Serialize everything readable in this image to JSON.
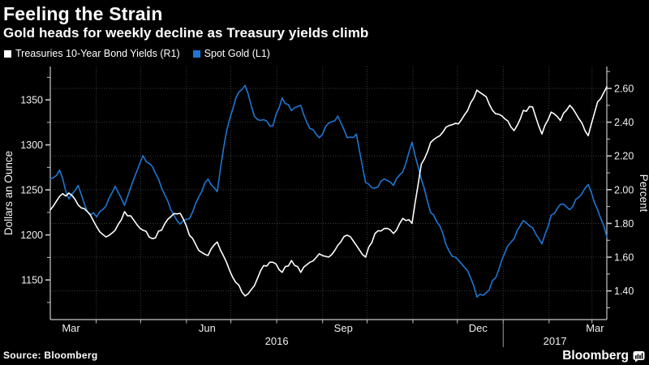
{
  "title": "Feeling the Strain",
  "subtitle": "Gold heads for weekly decline as Treasury yields climb",
  "legend": {
    "items": [
      {
        "label": "Treasuries 10-Year Bond Yields (R1)",
        "color": "#ffffff"
      },
      {
        "label": "Spot Gold (L1)",
        "color": "#1d76d2"
      }
    ]
  },
  "source": "Source: Bloomberg",
  "brand": "Bloomberg",
  "colors": {
    "background": "#000000",
    "text": "#ffffff",
    "accent_blue": "#1d76d2",
    "grid": "#3d3d3d",
    "axis": "#c8c8c8",
    "tick_label": "#f0f0f0",
    "year_divider": "#9a9a9a"
  },
  "chart_data": {
    "type": "line",
    "title": "Feeling the Strain",
    "subtitle": "Gold heads for weekly decline as Treasury yields climb",
    "grid": "dotted",
    "legend_position": "top-left",
    "x_axis": {
      "start": "Mar 2016",
      "end": "Mar 2017",
      "span_days": 376,
      "tick_labels": [
        "Mar",
        "Jun",
        "Sep",
        "Dec",
        "Mar"
      ],
      "tick_label_days": [
        14,
        106,
        198,
        289,
        368
      ],
      "month_boundary_days": [
        31,
        61,
        92,
        122,
        153,
        184,
        214,
        245,
        275,
        306,
        337,
        366
      ],
      "year_labels": [
        "2016",
        "2017"
      ],
      "year_divider_day": 306
    },
    "left_axis": {
      "title": "Dollars an Ounce",
      "tick_values": [
        1350,
        1300,
        1250,
        1200,
        1150
      ],
      "minor_step": 25,
      "value_at_plot_top": 1387,
      "value_at_plot_bottom": 1106
    },
    "right_axis": {
      "title": "Percent",
      "tick_labels": [
        "2.60",
        "2.40",
        "2.20",
        "2.00",
        "1.80",
        "1.60",
        "1.40"
      ],
      "minor_step": 0.1,
      "value_at_plot_top": 2.73,
      "value_at_plot_bottom": 1.23
    },
    "series": [
      {
        "name": "Treasuries 10-Year Bond Yields (R1)",
        "axis": "right",
        "unit": "percent",
        "color": "#ffffff",
        "frequency": "weekly",
        "values": [
          1.88,
          1.96,
          1.98,
          1.91,
          1.87,
          1.78,
          1.72,
          1.76,
          1.87,
          1.82,
          1.76,
          1.71,
          1.76,
          1.84,
          1.86,
          1.73,
          1.64,
          1.61,
          1.69,
          1.57,
          1.45,
          1.37,
          1.43,
          1.55,
          1.57,
          1.51,
          1.58,
          1.51,
          1.57,
          1.62,
          1.6,
          1.67,
          1.73,
          1.67,
          1.6,
          1.74,
          1.77,
          1.74,
          1.83,
          1.8,
          2.15,
          2.28,
          2.32,
          2.38,
          2.39,
          2.47,
          2.59,
          2.55,
          2.45,
          2.42,
          2.35,
          2.47,
          2.49,
          2.33,
          2.46,
          2.41,
          2.5,
          2.42,
          2.32,
          2.52,
          2.61
        ]
      },
      {
        "name": "Spot Gold (L1)",
        "axis": "left",
        "unit": "dollars_per_ounce",
        "color": "#1d76d2",
        "frequency": "weekly",
        "values": [
          1262,
          1272,
          1240,
          1255,
          1226,
          1220,
          1232,
          1254,
          1233,
          1262,
          1288,
          1276,
          1252,
          1228,
          1212,
          1218,
          1242,
          1262,
          1248,
          1315,
          1352,
          1366,
          1332,
          1328,
          1321,
          1352,
          1338,
          1344,
          1318,
          1308,
          1324,
          1332,
          1308,
          1312,
          1258,
          1252,
          1262,
          1255,
          1270,
          1303,
          1262,
          1225,
          1210,
          1182,
          1172,
          1160,
          1131,
          1136,
          1152,
          1180,
          1196,
          1216,
          1208,
          1190,
          1222,
          1234,
          1228,
          1242,
          1256,
          1228,
          1198
        ]
      }
    ]
  }
}
